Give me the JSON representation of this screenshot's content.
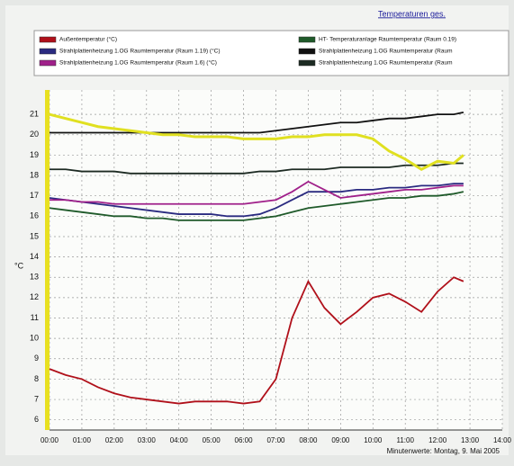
{
  "header": {
    "link": "Temperaturen ges."
  },
  "chart_data": {
    "type": "line",
    "x_label": "Minutenwerte: Montag, 9. Mai 2005",
    "y_label": "°C",
    "x": [
      0,
      0.5,
      1,
      1.5,
      2,
      2.5,
      3,
      3.5,
      4,
      4.5,
      5,
      5.5,
      6,
      6.5,
      7,
      7.5,
      8,
      8.5,
      9,
      9.5,
      10,
      10.5,
      11,
      11.5,
      12,
      12.5,
      12.8
    ],
    "series": [
      {
        "name": "Außentemperatur (°C)",
        "color": "#b0101a",
        "values": [
          8.5,
          8.2,
          8.0,
          7.6,
          7.3,
          7.1,
          7.0,
          6.9,
          6.8,
          6.9,
          6.9,
          6.9,
          6.8,
          6.9,
          8.0,
          11.0,
          12.8,
          11.5,
          10.7,
          11.3,
          12.0,
          12.2,
          11.8,
          11.3,
          12.3,
          13.0,
          12.8
        ]
      },
      {
        "name": "Strahlplattenheizung 1.OG  Raumtemperatur (Raum 1.19) (°C)",
        "color": "#2a2a80",
        "values": [
          16.9,
          16.8,
          16.7,
          16.6,
          16.5,
          16.4,
          16.3,
          16.2,
          16.1,
          16.1,
          16.1,
          16.0,
          16.0,
          16.1,
          16.4,
          16.8,
          17.2,
          17.2,
          17.2,
          17.3,
          17.3,
          17.4,
          17.4,
          17.5,
          17.5,
          17.6,
          17.6
        ]
      },
      {
        "name": "Strahlplattenheizung 1.OG  Raumtemperatur (Raum 1.6) (°C)",
        "color": "#a0208a",
        "values": [
          16.8,
          16.8,
          16.7,
          16.7,
          16.6,
          16.6,
          16.6,
          16.6,
          16.6,
          16.6,
          16.6,
          16.6,
          16.6,
          16.7,
          16.8,
          17.2,
          17.7,
          17.3,
          16.9,
          17.0,
          17.1,
          17.2,
          17.3,
          17.3,
          17.4,
          17.5,
          17.5
        ]
      },
      {
        "name": "HT- Temperaturanlage  Raumtemperatur (Raum 0.19)",
        "color": "#1f5a2a",
        "values": [
          16.4,
          16.3,
          16.2,
          16.1,
          16.0,
          16.0,
          15.9,
          15.9,
          15.8,
          15.8,
          15.8,
          15.8,
          15.8,
          15.9,
          16.0,
          16.2,
          16.4,
          16.5,
          16.6,
          16.7,
          16.8,
          16.9,
          16.9,
          17.0,
          17.0,
          17.1,
          17.2
        ]
      },
      {
        "name": "Strahlplattenheizung 1.OG  Raumtemperatur (Raum",
        "color": "#111111",
        "values": [
          20.1,
          20.1,
          20.1,
          20.1,
          20.1,
          20.1,
          20.1,
          20.1,
          20.1,
          20.1,
          20.1,
          20.1,
          20.1,
          20.1,
          20.2,
          20.3,
          20.4,
          20.5,
          20.6,
          20.6,
          20.7,
          20.8,
          20.8,
          20.9,
          21.0,
          21.0,
          21.1
        ]
      },
      {
        "name": "Strahlplattenheizung 1.OG  Raumtemperatur (Raum",
        "color": "#1c2a22",
        "values": [
          18.3,
          18.3,
          18.2,
          18.2,
          18.2,
          18.1,
          18.1,
          18.1,
          18.1,
          18.1,
          18.1,
          18.1,
          18.1,
          18.2,
          18.2,
          18.3,
          18.3,
          18.3,
          18.4,
          18.4,
          18.4,
          18.4,
          18.5,
          18.5,
          18.5,
          18.6,
          18.6
        ]
      },
      {
        "color": "#e0e020",
        "values": [
          21.0,
          20.8,
          20.6,
          20.4,
          20.3,
          20.2,
          20.1,
          20.0,
          20.0,
          19.9,
          19.9,
          19.9,
          19.8,
          19.8,
          19.8,
          19.9,
          19.9,
          20.0,
          20.0,
          20.0,
          19.8,
          19.2,
          18.8,
          18.3,
          18.7,
          18.6,
          19.0
        ]
      }
    ],
    "xlim": [
      0,
      14
    ],
    "xticks": [
      {
        "value": 0,
        "label": "00:00"
      },
      {
        "value": 1,
        "label": "01:00"
      },
      {
        "value": 2,
        "label": "02:00"
      },
      {
        "value": 3,
        "label": "03:00"
      },
      {
        "value": 4,
        "label": "04:00"
      },
      {
        "value": 5,
        "label": "05:00"
      },
      {
        "value": 6,
        "label": "06:00"
      },
      {
        "value": 7,
        "label": "07:00"
      },
      {
        "value": 8,
        "label": "08:00"
      },
      {
        "value": 9,
        "label": "09:00"
      },
      {
        "value": 10,
        "label": "10:00"
      },
      {
        "value": 11,
        "label": "11:00"
      },
      {
        "value": 12,
        "label": "12:00"
      },
      {
        "value": 13,
        "label": "13:00"
      },
      {
        "value": 14,
        "label": "14:00"
      }
    ],
    "ylim": [
      5.5,
      22.2
    ],
    "yticks": [
      6,
      7,
      8,
      9,
      10,
      11,
      12,
      13,
      14,
      15,
      16,
      17,
      18,
      19,
      20,
      21
    ],
    "grid": true
  }
}
